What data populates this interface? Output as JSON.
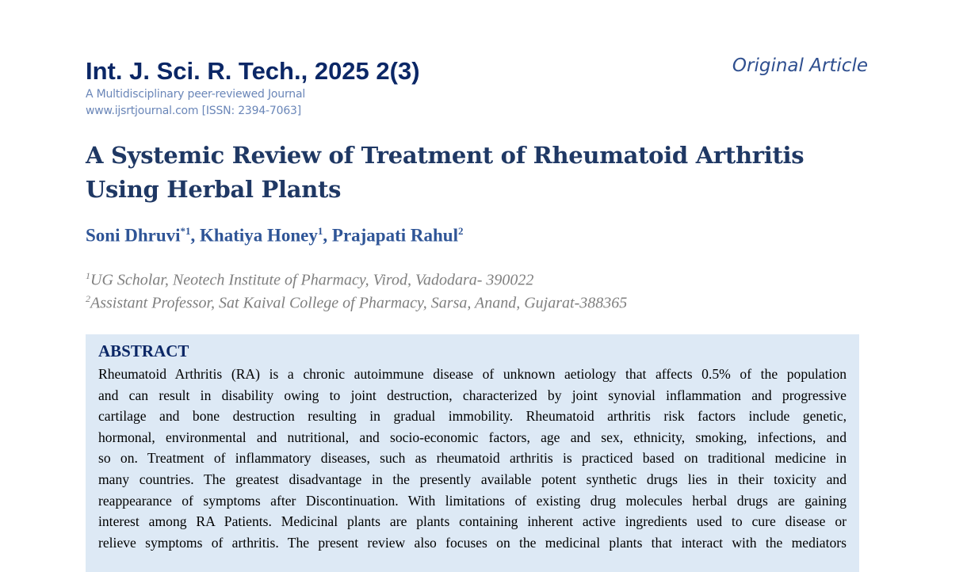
{
  "header": {
    "journal": "Int. J. Sci. R. Tech., 2025 2(3)",
    "tagline": "A Multidisciplinary peer-reviewed Journal",
    "website": "www.ijsrtjournal.com [ISSN: 2394-7063]",
    "article_type": "Original Article"
  },
  "title": "A Systemic Review of Treatment of Rheumatoid Arthritis Using Herbal Plants",
  "authors": [
    {
      "name": "Soni Dhruvi",
      "mark": "*1"
    },
    {
      "name": "Khatiya Honey",
      "mark": "1"
    },
    {
      "name": "Prajapati Rahul",
      "mark": "2"
    }
  ],
  "affiliations": [
    {
      "num": "1",
      "text": "UG Scholar, Neotech Institute of Pharmacy, Virod, Vadodara- 390022"
    },
    {
      "num": "2",
      "text": "Assistant Professor, Sat Kaival College of Pharmacy, Sarsa, Anand, Gujarat-388365"
    }
  ],
  "abstract": {
    "heading": "ABSTRACT",
    "lines": [
      "Rheumatoid Arthritis (RA) is a chronic autoimmune disease of unknown aetiology that affects 0.5% of the population",
      "and can result in disability owing to joint destruction, characterized by joint synovial inflammation and progressive",
      "cartilage and bone destruction resulting in gradual immobility.  Rheumatoid arthritis risk factors include genetic,",
      "hormonal, environmental and nutritional, and socio-economic factors, age and sex, ethnicity, smoking, infections, and",
      "so on. Treatment of inflammatory diseases, such as rheumatoid arthritis is practiced based on traditional medicine in",
      "many countries. The greatest disadvantage in the presently available potent synthetic drugs lies in their toxicity and",
      "reappearance of symptoms after Discontinuation. With limitations of existing drug molecules herbal drugs are gaining",
      "interest among RA Patients. Medicinal plants are plants containing inherent active ingredients used to cure disease or",
      "relieve symptoms of arthritis. The present review also focuses on the medicinal plants that interact with the mediators"
    ]
  }
}
